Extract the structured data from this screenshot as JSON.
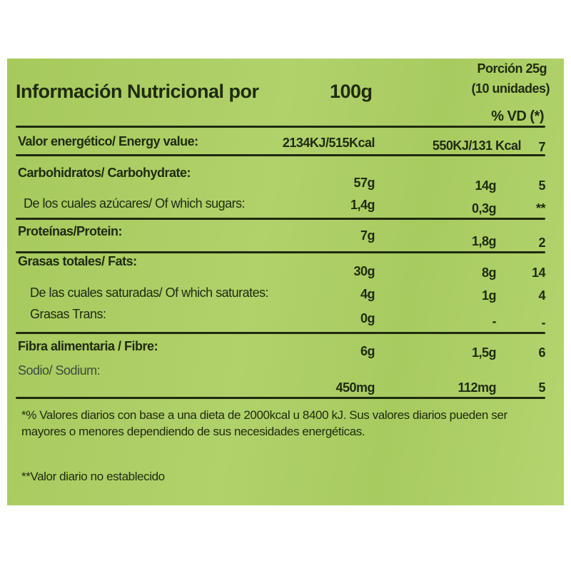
{
  "header": {
    "title": "Información Nutricional por",
    "per100": "100g",
    "portion": "Porción 25g",
    "units": "(10 unidades)",
    "vd": "% VD (*)"
  },
  "rows": [
    {
      "label": "Valor energético/ Energy value:",
      "per100": "2134KJ/515Kcal",
      "portion": "550KJ/131 Kcal",
      "vd": "7"
    },
    {
      "label": "Carbohidratos/ Carbohydrate:",
      "per100": "57g",
      "portion": "14g",
      "vd": "5"
    },
    {
      "label": "De los cuales azúcares/ Of which sugars:",
      "per100": "1,4g",
      "portion": "0,3g",
      "vd": "**"
    },
    {
      "label": "Proteínas/Protein:",
      "per100": "7g",
      "portion": "1,8g",
      "vd": "2"
    },
    {
      "label": "Grasas totales/ Fats:",
      "per100": "30g",
      "portion": "8g",
      "vd": "14"
    },
    {
      "label": "De las cuales saturadas/ Of which saturates:",
      "per100": "4g",
      "portion": "1g",
      "vd": "4"
    },
    {
      "label": "Grasas Trans:",
      "per100": "0g",
      "portion": "-",
      "vd": "-"
    },
    {
      "label": "Fibra alimentaria / Fibre:",
      "per100": "6g",
      "portion": "1,5g",
      "vd": "6"
    },
    {
      "label": "Sodio/ Sodium:",
      "per100": "450mg",
      "portion": "112mg",
      "vd": "5"
    }
  ],
  "footer": {
    "note1": "*% Valores diarios con base a una dieta de 2000kcal u 8400 kJ. Sus valores diarios pueden ser mayores o menores dependiendo de sus necesidades energéticas.",
    "note2": "**Valor diario no establecido"
  },
  "colors": {
    "background": "#aacc62",
    "text": "#1f2a10"
  }
}
